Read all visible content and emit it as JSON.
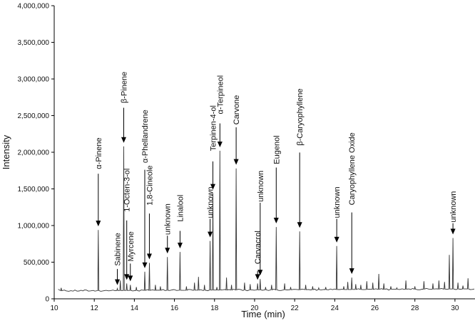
{
  "chart_data": {
    "type": "line",
    "title": "",
    "xlabel": "Time (min)",
    "ylabel": "Intensity",
    "xlim": [
      10,
      31
    ],
    "ylim": [
      0,
      4000000
    ],
    "x_ticks": [
      10,
      12,
      14,
      16,
      18,
      20,
      22,
      24,
      26,
      28,
      30
    ],
    "x_tick_labels": [
      "10",
      "12",
      "14",
      "16",
      "18",
      "20",
      "22",
      "24",
      "26",
      "28",
      "30"
    ],
    "y_ticks": [
      0,
      500000,
      1000000,
      1500000,
      2000000,
      2500000,
      3000000,
      3500000,
      4000000
    ],
    "y_tick_labels": [
      "0",
      "500,000",
      "1,000,000",
      "1,500,000",
      "2,000,000",
      "2,500,000",
      "3,000,000",
      "3,500,000",
      "4,000,000"
    ],
    "grid": false,
    "legend": false,
    "line_color": "#333333",
    "baseline": 110000,
    "peaks": [
      {
        "x": 10.35,
        "y": 150000
      },
      {
        "x": 12.2,
        "y": 940000
      },
      {
        "x": 13.15,
        "y": 140000
      },
      {
        "x": 13.3,
        "y": 250000
      },
      {
        "x": 13.47,
        "y": 2080000
      },
      {
        "x": 13.62,
        "y": 210000
      },
      {
        "x": 13.8,
        "y": 190000
      },
      {
        "x": 14.1,
        "y": 160000
      },
      {
        "x": 14.52,
        "y": 370000
      },
      {
        "x": 14.75,
        "y": 490000
      },
      {
        "x": 15.05,
        "y": 190000
      },
      {
        "x": 15.3,
        "y": 170000
      },
      {
        "x": 15.65,
        "y": 570000
      },
      {
        "x": 16.28,
        "y": 640000
      },
      {
        "x": 16.6,
        "y": 170000
      },
      {
        "x": 17.0,
        "y": 220000
      },
      {
        "x": 17.2,
        "y": 300000
      },
      {
        "x": 17.5,
        "y": 190000
      },
      {
        "x": 17.78,
        "y": 790000
      },
      {
        "x": 17.92,
        "y": 1440000
      },
      {
        "x": 18.12,
        "y": 160000
      },
      {
        "x": 18.27,
        "y": 2020000
      },
      {
        "x": 18.6,
        "y": 290000
      },
      {
        "x": 18.85,
        "y": 190000
      },
      {
        "x": 19.08,
        "y": 1780000
      },
      {
        "x": 19.5,
        "y": 220000
      },
      {
        "x": 19.78,
        "y": 200000
      },
      {
        "x": 20.15,
        "y": 210000
      },
      {
        "x": 20.28,
        "y": 270000
      },
      {
        "x": 20.55,
        "y": 160000
      },
      {
        "x": 20.85,
        "y": 190000
      },
      {
        "x": 21.08,
        "y": 980000
      },
      {
        "x": 21.5,
        "y": 210000
      },
      {
        "x": 21.8,
        "y": 160000
      },
      {
        "x": 22.25,
        "y": 920000
      },
      {
        "x": 22.55,
        "y": 190000
      },
      {
        "x": 22.9,
        "y": 170000
      },
      {
        "x": 23.2,
        "y": 150000
      },
      {
        "x": 23.55,
        "y": 160000
      },
      {
        "x": 24.1,
        "y": 720000
      },
      {
        "x": 24.45,
        "y": 170000
      },
      {
        "x": 24.65,
        "y": 230000
      },
      {
        "x": 24.85,
        "y": 290000
      },
      {
        "x": 25.05,
        "y": 200000
      },
      {
        "x": 25.3,
        "y": 190000
      },
      {
        "x": 25.6,
        "y": 240000
      },
      {
        "x": 25.9,
        "y": 220000
      },
      {
        "x": 26.2,
        "y": 340000
      },
      {
        "x": 26.45,
        "y": 210000
      },
      {
        "x": 26.8,
        "y": 170000
      },
      {
        "x": 27.1,
        "y": 150000
      },
      {
        "x": 27.55,
        "y": 250000
      },
      {
        "x": 28.0,
        "y": 170000
      },
      {
        "x": 28.45,
        "y": 240000
      },
      {
        "x": 28.9,
        "y": 210000
      },
      {
        "x": 29.2,
        "y": 250000
      },
      {
        "x": 29.48,
        "y": 230000
      },
      {
        "x": 29.72,
        "y": 600000
      },
      {
        "x": 29.9,
        "y": 830000
      },
      {
        "x": 30.15,
        "y": 220000
      },
      {
        "x": 30.4,
        "y": 180000
      },
      {
        "x": 30.65,
        "y": 280000
      }
    ],
    "annotations": [
      {
        "text": "α-Pinene",
        "x": 12.2,
        "y_peak": 940000,
        "label_top": 2200000
      },
      {
        "text": "Sabinene",
        "x": 13.15,
        "y_peak": 140000,
        "label_top": 900000
      },
      {
        "text": "β-Pinene",
        "x": 13.47,
        "y_peak": 2080000,
        "label_top": 3100000
      },
      {
        "text": "1-Octen-3-ol",
        "x": 13.62,
        "y_peak": 210000,
        "label_top": 1780000
      },
      {
        "text": "Myrcene",
        "x": 13.8,
        "y_peak": 190000,
        "label_top": 920000
      },
      {
        "text": "α-Phellandrene",
        "x": 14.52,
        "y_peak": 370000,
        "label_top": 2580000
      },
      {
        "text": "1,8-Cineole",
        "x": 14.75,
        "y_peak": 490000,
        "label_top": 1820000
      },
      {
        "text": "unknown",
        "x": 15.65,
        "y_peak": 570000,
        "label_top": 1300000
      },
      {
        "text": "Linalool",
        "x": 16.28,
        "y_peak": 640000,
        "label_top": 1420000
      },
      {
        "text": "unknown",
        "x": 17.78,
        "y_peak": 790000,
        "label_top": 1530000
      },
      {
        "text": "Terpinen-4-ol",
        "x": 17.92,
        "y_peak": 1440000,
        "label_top": 2640000
      },
      {
        "text": "α-Terpineol",
        "x": 18.27,
        "y_peak": 2020000,
        "label_top": 3050000
      },
      {
        "text": "Carvone",
        "x": 19.08,
        "y_peak": 1780000,
        "label_top": 2780000
      },
      {
        "text": "Carvacrol",
        "x": 20.15,
        "y_peak": 210000,
        "label_top": 930000
      },
      {
        "text": "unknown",
        "x": 20.28,
        "y_peak": 270000,
        "label_top": 1750000
      },
      {
        "text": "Eugenol",
        "x": 21.08,
        "y_peak": 980000,
        "label_top": 2230000
      },
      {
        "text": "β-Caryophyllene",
        "x": 22.25,
        "y_peak": 920000,
        "label_top": 2870000
      },
      {
        "text": "unknown",
        "x": 24.1,
        "y_peak": 720000,
        "label_top": 1530000
      },
      {
        "text": "Caryophyllene Oxide",
        "x": 24.85,
        "y_peak": 290000,
        "label_top": 2270000
      },
      {
        "text": "unknown",
        "x": 29.9,
        "y_peak": 830000,
        "label_top": 1470000
      }
    ]
  }
}
